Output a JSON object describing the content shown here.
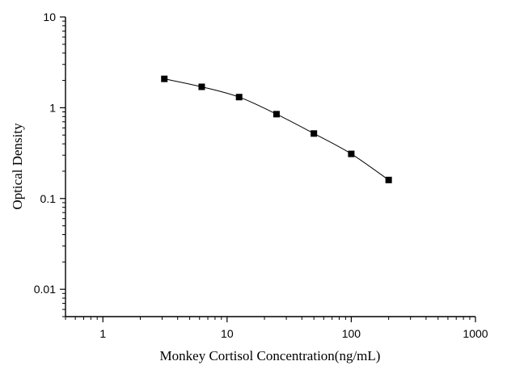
{
  "chart_data": {
    "type": "scatter",
    "title": "",
    "xlabel": "Monkey Cortisol Concentration(ng/mL)",
    "ylabel": "Optical Density",
    "xscale": "log",
    "yscale": "log",
    "xlim": [
      0.5,
      1000
    ],
    "ylim": [
      0.005,
      10
    ],
    "xticks": [
      1,
      10,
      100,
      1000
    ],
    "xtick_labels": [
      "1",
      "10",
      "100",
      "1000"
    ],
    "yticks": [
      0.01,
      0.1,
      1,
      10
    ],
    "ytick_labels": [
      "0.01",
      "0.1",
      "1",
      "10"
    ],
    "grid": false,
    "legend": "none",
    "series": [
      {
        "x": [
          3.125,
          6.25,
          12.5,
          25,
          50,
          100,
          200
        ],
        "y": [
          2.08,
          1.7,
          1.31,
          0.85,
          0.52,
          0.31,
          0.16
        ],
        "color": "#000000",
        "marker": "square",
        "line": "smooth"
      }
    ]
  }
}
